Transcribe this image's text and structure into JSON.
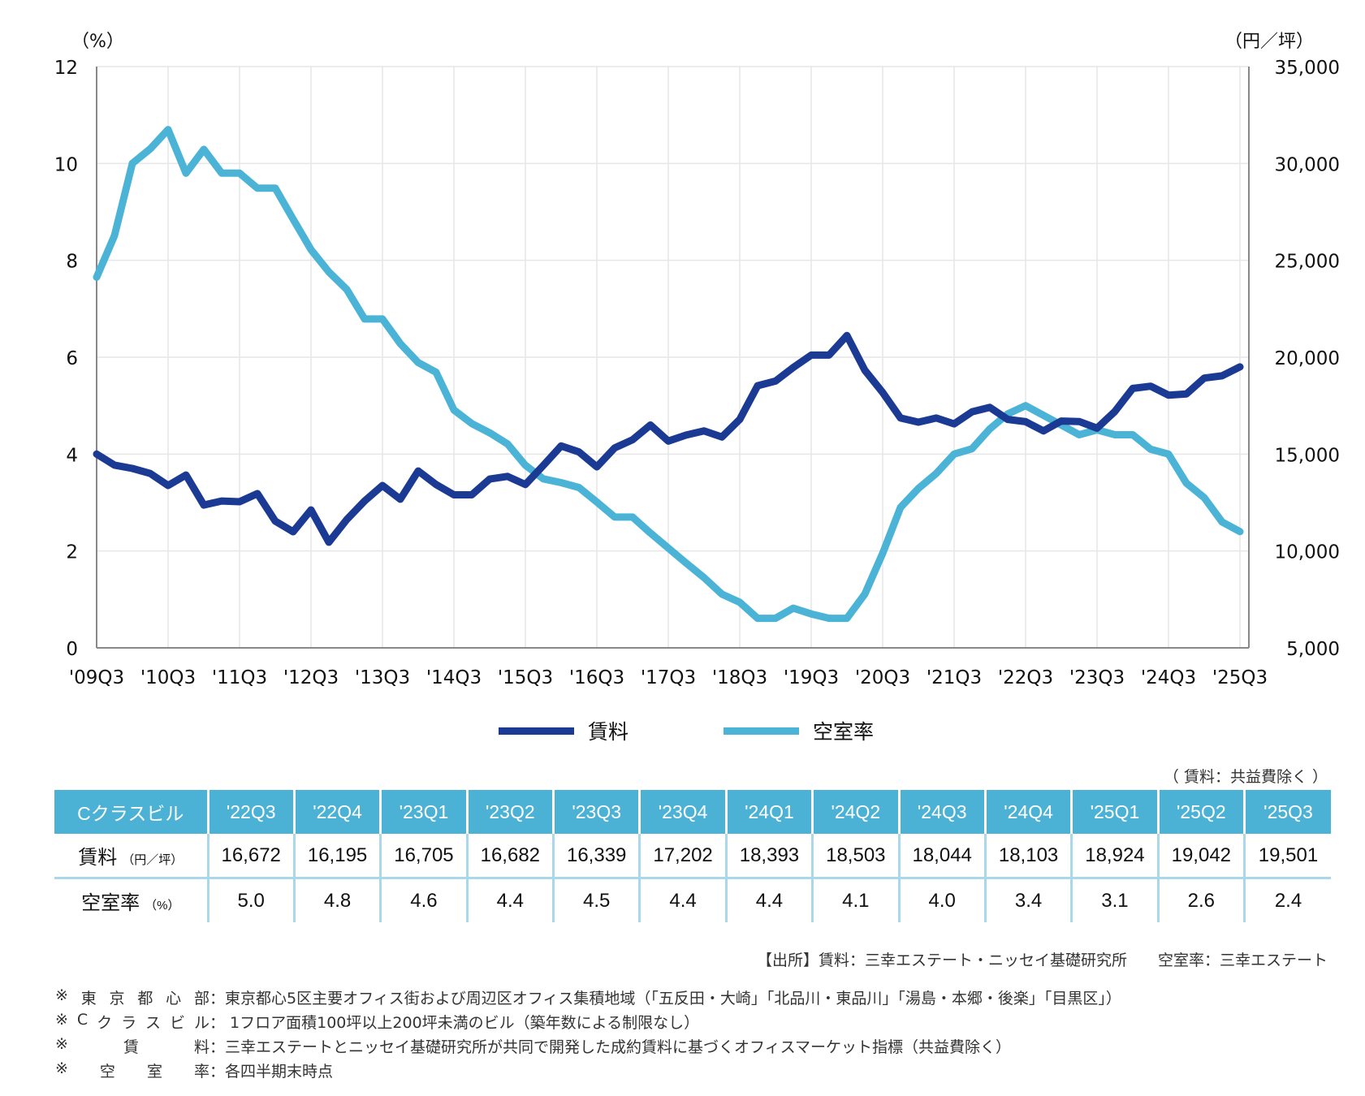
{
  "chart_data": {
    "type": "line",
    "title": "",
    "left_axis": {
      "unit_label": "（%）",
      "ylim": [
        0,
        12
      ],
      "ticks": [
        "0",
        "2",
        "4",
        "6",
        "8",
        "10",
        "12"
      ]
    },
    "right_axis": {
      "unit_label": "（円／坪）",
      "ylim": [
        5000,
        35000
      ],
      "ticks": [
        "5,000",
        "10,000",
        "15,000",
        "20,000",
        "25,000",
        "30,000",
        "35,000"
      ]
    },
    "x_tick_labels": [
      "'09Q3",
      "'10Q3",
      "'11Q3",
      "'12Q3",
      "'13Q3",
      "'14Q3",
      "'15Q3",
      "'16Q3",
      "'17Q3",
      "'18Q3",
      "'19Q3",
      "'20Q3",
      "'21Q3",
      "'22Q3",
      "'23Q3",
      "'24Q3",
      "'25Q3"
    ],
    "x_start": "'09Q3",
    "x_end": "'25Q3",
    "grid": true,
    "legend_position": "bottom-center",
    "series": [
      {
        "name": "賃料",
        "axis": "right",
        "color": "#1b3a93",
        "values": [
          15000,
          14430,
          14260,
          14000,
          13380,
          13920,
          12370,
          12580,
          12540,
          12960,
          11540,
          10990,
          12120,
          10450,
          11620,
          12580,
          13380,
          12670,
          14130,
          13430,
          12900,
          12900,
          13710,
          13850,
          13430,
          14410,
          15420,
          15110,
          14340,
          15320,
          15740,
          16500,
          15670,
          15980,
          16200,
          15880,
          16790,
          18530,
          18770,
          19470,
          20110,
          20110,
          21120,
          19330,
          18180,
          16860,
          16650,
          16860,
          16560,
          17180,
          17410,
          16790,
          16672,
          16195,
          16705,
          16682,
          16339,
          17202,
          18393,
          18503,
          18044,
          18103,
          18924,
          19042,
          19501
        ]
      },
      {
        "name": "空室率",
        "axis": "left",
        "color": "#4bb3d6",
        "values": [
          7.65,
          8.51,
          10.0,
          10.3,
          10.7,
          9.8,
          10.29,
          9.8,
          9.8,
          9.49,
          9.49,
          8.85,
          8.22,
          7.76,
          7.4,
          6.79,
          6.79,
          6.28,
          5.89,
          5.69,
          4.91,
          4.63,
          4.44,
          4.21,
          3.77,
          3.49,
          3.41,
          3.31,
          3.01,
          2.7,
          2.7,
          2.37,
          2.06,
          1.75,
          1.45,
          1.11,
          0.94,
          0.61,
          0.61,
          0.82,
          0.7,
          0.61,
          0.61,
          1.11,
          1.95,
          2.9,
          3.29,
          3.6,
          4.0,
          4.11,
          4.52,
          4.83,
          5.0,
          4.8,
          4.6,
          4.4,
          4.5,
          4.4,
          4.4,
          4.1,
          4.0,
          3.4,
          3.1,
          2.6,
          2.4
        ]
      }
    ]
  },
  "legend": {
    "items": [
      {
        "label": "賃料",
        "color": "#1b3a93"
      },
      {
        "label": "空室率",
        "color": "#4bb3d6"
      }
    ]
  },
  "table": {
    "note": "（ 賃料：共益費除く ）",
    "corner": "Cクラスビル",
    "columns": [
      "'22Q3",
      "'22Q4",
      "'23Q1",
      "'23Q2",
      "'23Q3",
      "'23Q4",
      "'24Q1",
      "'24Q2",
      "'24Q3",
      "'24Q4",
      "'25Q1",
      "'25Q2",
      "'25Q3"
    ],
    "rows": [
      {
        "label": "賃料",
        "unit": "（円／坪）",
        "values": [
          "16,672",
          "16,195",
          "16,705",
          "16,682",
          "16,339",
          "17,202",
          "18,393",
          "18,503",
          "18,044",
          "18,103",
          "18,924",
          "19,042",
          "19,501"
        ]
      },
      {
        "label": "空室率",
        "unit": "（%）",
        "values": [
          "5.0",
          "4.8",
          "4.6",
          "4.4",
          "4.5",
          "4.4",
          "4.4",
          "4.1",
          "4.0",
          "3.4",
          "3.1",
          "2.6",
          "2.4"
        ]
      }
    ]
  },
  "source": "【出所】賃料：三幸エステート・ニッセイ基礎研究所　　空室率：三幸エステート",
  "footnotes": [
    {
      "key": "※東京都心部",
      "text": "：東京都心5区主要オフィス街および周辺区オフィス集積地域（「五反田・大崎」「北品川・東品川」「湯島・本郷・後楽」「目黒区」）"
    },
    {
      "key": "※Cクラスビル",
      "text": "： 1フロア面積100坪以上200坪未満のビル（築年数による制限なし）"
    },
    {
      "key": "※賃料",
      "text": "：三幸エステートとニッセイ基礎研究所が共同で開発した成約賃料に基づくオフィスマーケット指標（共益費除く）"
    },
    {
      "key": "※空室率",
      "text": "：各四半期末時点"
    }
  ]
}
